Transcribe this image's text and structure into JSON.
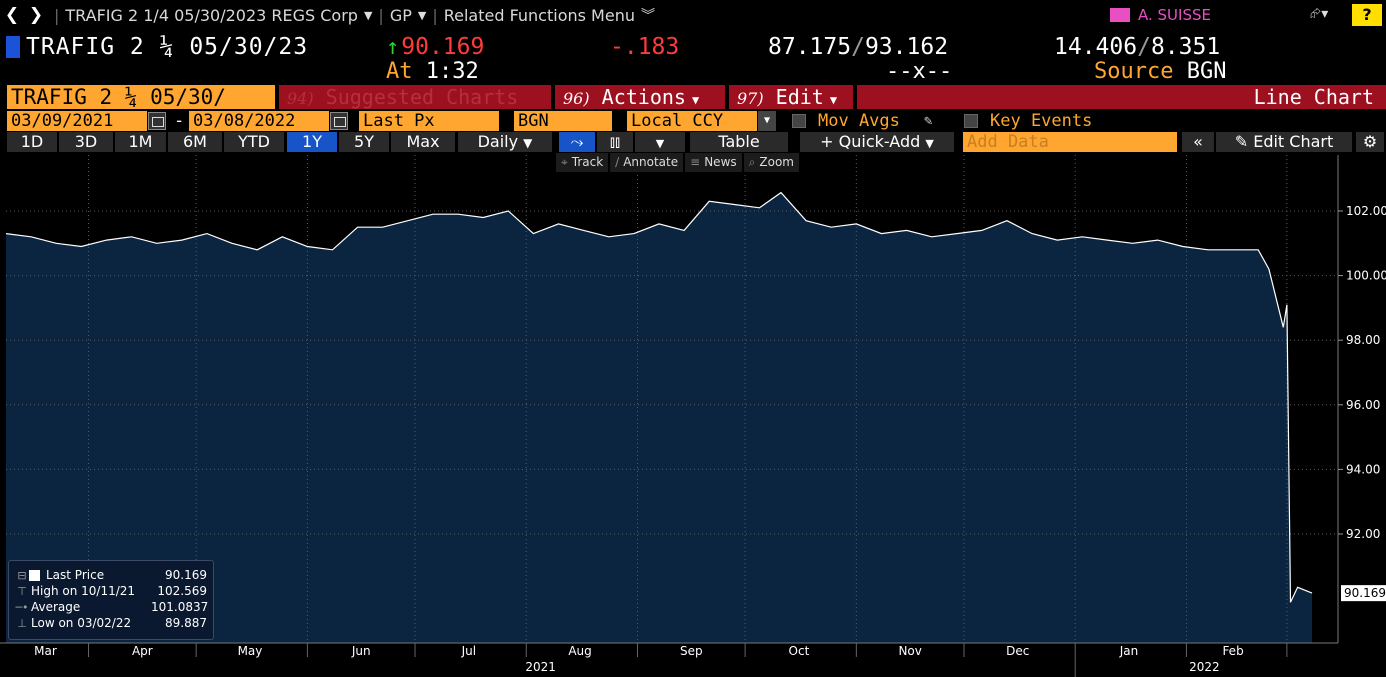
{
  "nav": {
    "ticker_menu": "TRAFIG 2 1/4 05/30/2023 REGS Corp",
    "function": "GP",
    "related": "Related Functions Menu",
    "user": "A. SUISSE",
    "help": "?"
  },
  "security": {
    "name": "TRAFIG 2 ¼ 05/30/23",
    "last": "90.169",
    "change": "-.183",
    "range_low": "87.175",
    "range_high": "93.162",
    "yield_1": "14.406",
    "yield_2": "8.351",
    "at_label": "At",
    "time": "1:32",
    "bid_ask": "--x--",
    "source_label": "Source",
    "source": "BGN"
  },
  "menu": {
    "title": "TRAFIG 2 ¼ 05/30/",
    "suggested_num": "94)",
    "suggested": "Suggested Charts",
    "actions_num": "96)",
    "actions": "Actions",
    "edit_num": "97)",
    "edit": "Edit",
    "chart_type": "Line Chart"
  },
  "settings": {
    "start_date": "03/09/2021",
    "end_date": "03/08/2022",
    "dash": "-",
    "field": "Last Px",
    "source": "BGN",
    "currency": "Local CCY",
    "mov_avgs": "Mov Avgs",
    "key_events": "Key Events"
  },
  "toolbar": {
    "periods": [
      "1D",
      "3D",
      "1M",
      "6M",
      "YTD",
      "1Y",
      "5Y",
      "Max"
    ],
    "active_period": "1Y",
    "frequency": "Daily",
    "table": "Table",
    "quick_add": "Quick-Add",
    "add_data_placeholder": "Add Data",
    "edit_chart": "Edit Chart"
  },
  "tools": {
    "track": "Track",
    "annotate": "Annotate",
    "news": "News",
    "zoom": "Zoom"
  },
  "legend": {
    "last_label": "Last Price",
    "last_value": "90.169",
    "high_label": "High on 10/11/21",
    "high_value": "102.569",
    "avg_label": "Average",
    "avg_value": "101.0837",
    "low_label": "Low on 03/02/22",
    "low_value": "89.887"
  },
  "colors": {
    "background": "#000000",
    "area_fill": "#0b2540",
    "line": "#ffffff",
    "orange": "#ffa630",
    "menu_red": "#9c1020",
    "blue_active": "#1754c7"
  },
  "chart_data": {
    "type": "area",
    "series": [
      {
        "name": "Last Price"
      }
    ],
    "x": [
      "2021-03-09",
      "2021-03-16",
      "2021-03-23",
      "2021-03-30",
      "2021-04-06",
      "2021-04-13",
      "2021-04-20",
      "2021-04-27",
      "2021-05-04",
      "2021-05-11",
      "2021-05-18",
      "2021-05-25",
      "2021-06-01",
      "2021-06-08",
      "2021-06-15",
      "2021-06-22",
      "2021-06-29",
      "2021-07-06",
      "2021-07-13",
      "2021-07-20",
      "2021-07-27",
      "2021-08-03",
      "2021-08-10",
      "2021-08-17",
      "2021-08-24",
      "2021-08-31",
      "2021-09-07",
      "2021-09-14",
      "2021-09-21",
      "2021-09-28",
      "2021-10-05",
      "2021-10-11",
      "2021-10-18",
      "2021-10-25",
      "2021-11-01",
      "2021-11-08",
      "2021-11-15",
      "2021-11-22",
      "2021-11-29",
      "2021-12-06",
      "2021-12-13",
      "2021-12-20",
      "2021-12-27",
      "2022-01-03",
      "2022-01-10",
      "2022-01-17",
      "2022-01-24",
      "2022-01-31",
      "2022-02-07",
      "2022-02-14",
      "2022-02-21",
      "2022-02-24",
      "2022-02-28",
      "2022-03-01",
      "2022-03-02",
      "2022-03-04",
      "2022-03-08"
    ],
    "values": [
      101.3,
      101.2,
      101.0,
      100.9,
      101.1,
      101.2,
      101.0,
      101.1,
      101.3,
      101.0,
      100.8,
      101.2,
      100.9,
      100.8,
      101.5,
      101.5,
      101.7,
      101.9,
      101.9,
      101.8,
      102.0,
      101.3,
      101.6,
      101.4,
      101.2,
      101.3,
      101.6,
      101.4,
      102.3,
      102.2,
      102.1,
      102.569,
      101.7,
      101.5,
      101.6,
      101.3,
      101.4,
      101.2,
      101.3,
      101.4,
      101.7,
      101.3,
      101.1,
      101.2,
      101.1,
      101.0,
      101.1,
      100.9,
      100.8,
      100.8,
      100.8,
      100.2,
      98.4,
      99.1,
      89.887,
      90.35,
      90.169
    ],
    "xlabel": "",
    "ylabel": "",
    "ylim": [
      90.169,
      102.569
    ],
    "y_ticks": [
      "102.00",
      "100.00",
      "98.00",
      "96.00",
      "94.00",
      "92.00"
    ],
    "x_months": [
      "Mar",
      "Apr",
      "May",
      "Jun",
      "Jul",
      "Aug",
      "Sep",
      "Oct",
      "Nov",
      "Dec",
      "Jan",
      "Feb"
    ],
    "x_years": [
      "2021",
      "2022"
    ],
    "last_label": "90.169",
    "grid": true
  }
}
